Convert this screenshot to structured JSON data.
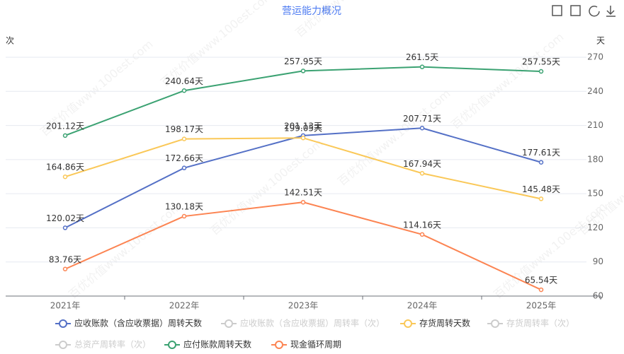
{
  "chart_data": {
    "type": "line",
    "title": "营运能力概况",
    "watermark": "百优价值www.100est.com",
    "y_label": "次",
    "y2_label": "天",
    "categories": [
      "2021年",
      "2022年",
      "2023年",
      "2024年",
      "2025年"
    ],
    "y2lim": [
      60,
      270
    ],
    "y2ticks": [
      60,
      90,
      120,
      150,
      180,
      210,
      240,
      270
    ],
    "grid": true,
    "legend": "bottom",
    "series": [
      {
        "name": "应收账款（含应收票据）周转天数",
        "color": "#5470c6",
        "axis": "y2",
        "values": [
          120.02,
          172.66,
          201.13,
          207.71,
          177.61
        ],
        "value_labels": [
          "120.02天",
          "172.66天",
          "201.13天",
          "207.71天",
          "177.61天"
        ]
      },
      {
        "name": "应收账款（含应收票据）周转率（次）",
        "color": "#cccccc",
        "hidden": true
      },
      {
        "name": "存货周转天数",
        "color": "#fac858",
        "axis": "y2",
        "values": [
          164.86,
          198.17,
          199.05,
          167.94,
          145.48
        ],
        "value_labels": [
          "164.86天",
          "198.17天",
          "199.05天",
          "167.94天",
          "145.48天"
        ]
      },
      {
        "name": "存货周转率（次）",
        "color": "#cccccc",
        "hidden": true
      },
      {
        "name": "总资产周转率（次）",
        "color": "#cccccc",
        "hidden": true
      },
      {
        "name": "应付账款周转天数",
        "color": "#3ba272",
        "axis": "y2",
        "values": [
          201.12,
          240.64,
          257.95,
          261.5,
          257.55
        ],
        "value_labels": [
          "201.12天",
          "240.64天",
          "257.95天",
          "261.5天",
          "257.55天"
        ]
      },
      {
        "name": "现金循环周期",
        "color": "#fc8452",
        "axis": "y2",
        "values": [
          83.76,
          130.18,
          142.51,
          114.16,
          65.54
        ],
        "value_labels": [
          "83.76天",
          "130.18天",
          "142.51天",
          "114.16天",
          "65.54天"
        ]
      }
    ]
  }
}
